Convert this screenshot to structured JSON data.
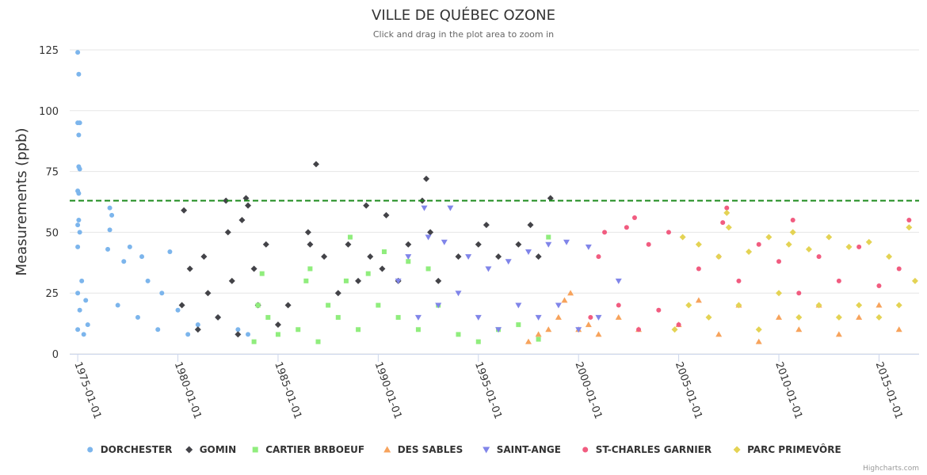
{
  "chart_data": {
    "type": "scatter",
    "title": "VILLE DE QUÉBEC OZONE",
    "subtitle": "Click and drag in the plot area to zoom in",
    "ylabel": "Measurements (ppb)",
    "xlabel": "",
    "ylim": [
      0,
      125
    ],
    "xlim": [
      1974.6,
      2017.0
    ],
    "yticks": [
      0,
      25,
      50,
      75,
      100,
      125
    ],
    "ytick_labels": [
      "0",
      "25",
      "50",
      "75",
      "100",
      "125"
    ],
    "xticks": [
      1975,
      1980,
      1985,
      1990,
      1995,
      2000,
      2005,
      2010,
      2015
    ],
    "xtick_labels": [
      "1975-01-01",
      "1980-01-01",
      "1985-01-01",
      "1990-01-01",
      "1995-01-01",
      "2000-01-01",
      "2005-01-01",
      "2010-01-01",
      "2015-01-01"
    ],
    "threshold": 63,
    "threshold_color": "#1b8a1b",
    "grid": true,
    "legend_position": "bottom",
    "credits": "Highcharts.com",
    "series": [
      {
        "name": "DORCHESTER",
        "color": "#7cb5ec",
        "marker": "circle",
        "data": [
          [
            1975.0,
            10
          ],
          [
            1975.0,
            25
          ],
          [
            1975.0,
            124
          ],
          [
            1975.05,
            115
          ],
          [
            1975.0,
            95
          ],
          [
            1975.1,
            95
          ],
          [
            1975.05,
            90
          ],
          [
            1975.05,
            77
          ],
          [
            1975.1,
            76
          ],
          [
            1975.0,
            67
          ],
          [
            1975.05,
            66
          ],
          [
            1975.05,
            55
          ],
          [
            1975.0,
            53
          ],
          [
            1975.1,
            50
          ],
          [
            1975.0,
            44
          ],
          [
            1975.2,
            30
          ],
          [
            1975.1,
            18
          ],
          [
            1975.3,
            8
          ],
          [
            1975.4,
            22
          ],
          [
            1975.5,
            12
          ],
          [
            1976.5,
            43
          ],
          [
            1976.6,
            60
          ],
          [
            1976.7,
            57
          ],
          [
            1976.6,
            51
          ],
          [
            1977.0,
            20
          ],
          [
            1977.3,
            38
          ],
          [
            1977.6,
            44
          ],
          [
            1978.0,
            15
          ],
          [
            1978.2,
            40
          ],
          [
            1978.5,
            30
          ],
          [
            1979.0,
            10
          ],
          [
            1979.2,
            25
          ],
          [
            1979.6,
            42
          ],
          [
            1980.0,
            18
          ],
          [
            1980.5,
            8
          ],
          [
            1981.0,
            12
          ],
          [
            1982.0,
            15
          ],
          [
            1983.0,
            10
          ],
          [
            1983.5,
            8
          ]
        ]
      },
      {
        "name": "GOMIN",
        "color": "#434348",
        "marker": "diamond",
        "data": [
          [
            1980.3,
            59
          ],
          [
            1980.2,
            20
          ],
          [
            1980.6,
            35
          ],
          [
            1981.0,
            10
          ],
          [
            1981.3,
            40
          ],
          [
            1981.5,
            25
          ],
          [
            1982.0,
            15
          ],
          [
            1982.4,
            63
          ],
          [
            1982.5,
            50
          ],
          [
            1982.7,
            30
          ],
          [
            1983.0,
            8
          ],
          [
            1983.2,
            55
          ],
          [
            1983.4,
            64
          ],
          [
            1983.5,
            61
          ],
          [
            1983.8,
            35
          ],
          [
            1984.0,
            20
          ],
          [
            1984.4,
            45
          ],
          [
            1985.0,
            12
          ],
          [
            1985.5,
            20
          ],
          [
            1986.5,
            50
          ],
          [
            1986.6,
            45
          ],
          [
            1986.9,
            78
          ],
          [
            1987.3,
            40
          ],
          [
            1988.0,
            25
          ],
          [
            1988.5,
            45
          ],
          [
            1989.0,
            30
          ],
          [
            1989.4,
            61
          ],
          [
            1989.6,
            40
          ],
          [
            1990.2,
            35
          ],
          [
            1990.4,
            57
          ],
          [
            1991.0,
            30
          ],
          [
            1991.5,
            45
          ],
          [
            1992.4,
            72
          ],
          [
            1992.2,
            63
          ],
          [
            1992.6,
            50
          ],
          [
            1993.0,
            30
          ],
          [
            1994.0,
            40
          ],
          [
            1995.0,
            45
          ],
          [
            1995.4,
            53
          ],
          [
            1996.0,
            40
          ],
          [
            1997.0,
            45
          ],
          [
            1997.6,
            53
          ],
          [
            1998.0,
            40
          ],
          [
            1998.6,
            64
          ]
        ]
      },
      {
        "name": "CARTIER BRBOEUF",
        "color": "#90ed7d",
        "marker": "square",
        "data": [
          [
            1983.8,
            5
          ],
          [
            1984.0,
            20
          ],
          [
            1984.2,
            33
          ],
          [
            1984.5,
            15
          ],
          [
            1985.0,
            8
          ],
          [
            1986.0,
            10
          ],
          [
            1986.4,
            30
          ],
          [
            1986.6,
            35
          ],
          [
            1987.0,
            5
          ],
          [
            1987.5,
            20
          ],
          [
            1988.0,
            15
          ],
          [
            1988.4,
            30
          ],
          [
            1988.6,
            48
          ],
          [
            1989.0,
            10
          ],
          [
            1989.5,
            33
          ],
          [
            1990.0,
            20
          ],
          [
            1990.3,
            42
          ],
          [
            1991.0,
            15
          ],
          [
            1991.5,
            38
          ],
          [
            1992.0,
            10
          ],
          [
            1992.5,
            35
          ],
          [
            1993.0,
            20
          ],
          [
            1994.0,
            8
          ],
          [
            1995.0,
            5
          ],
          [
            1996.0,
            10
          ],
          [
            1997.0,
            12
          ],
          [
            1998.0,
            6
          ],
          [
            1998.5,
            48
          ]
        ]
      },
      {
        "name": "DES SABLES",
        "color": "#f7a35c",
        "marker": "triangle",
        "data": [
          [
            1997.5,
            5
          ],
          [
            1998.0,
            8
          ],
          [
            1998.5,
            10
          ],
          [
            1999.0,
            15
          ],
          [
            1999.3,
            22
          ],
          [
            1999.6,
            25
          ],
          [
            2000.0,
            10
          ],
          [
            2000.5,
            12
          ],
          [
            2001.0,
            8
          ],
          [
            2002.0,
            15
          ],
          [
            2003.0,
            10
          ],
          [
            2005.0,
            12
          ],
          [
            2006.0,
            22
          ],
          [
            2007.0,
            8
          ],
          [
            2008.0,
            20
          ],
          [
            2009.0,
            5
          ],
          [
            2010.0,
            15
          ],
          [
            2011.0,
            10
          ],
          [
            2012.0,
            20
          ],
          [
            2013.0,
            8
          ],
          [
            2014.0,
            15
          ],
          [
            2015.0,
            20
          ],
          [
            2016.0,
            10
          ]
        ]
      },
      {
        "name": "SAINT-ANGE",
        "color": "#8085e9",
        "marker": "triangle-down",
        "data": [
          [
            1991.0,
            30
          ],
          [
            1991.5,
            40
          ],
          [
            1992.0,
            15
          ],
          [
            1992.3,
            60
          ],
          [
            1992.5,
            48
          ],
          [
            1993.0,
            20
          ],
          [
            1993.3,
            46
          ],
          [
            1993.6,
            60
          ],
          [
            1994.0,
            25
          ],
          [
            1994.5,
            40
          ],
          [
            1995.0,
            15
          ],
          [
            1995.5,
            35
          ],
          [
            1996.0,
            10
          ],
          [
            1996.5,
            38
          ],
          [
            1997.0,
            20
          ],
          [
            1997.5,
            42
          ],
          [
            1998.0,
            15
          ],
          [
            1998.5,
            45
          ],
          [
            1999.0,
            20
          ],
          [
            1999.4,
            46
          ],
          [
            2000.0,
            10
          ],
          [
            2000.5,
            44
          ],
          [
            2001.0,
            15
          ],
          [
            2002.0,
            30
          ]
        ]
      },
      {
        "name": "ST-CHARLES GARNIER",
        "color": "#f15c80",
        "marker": "circle",
        "data": [
          [
            2000.6,
            15
          ],
          [
            2001.0,
            40
          ],
          [
            2001.3,
            50
          ],
          [
            2002.0,
            20
          ],
          [
            2002.4,
            52
          ],
          [
            2002.8,
            56
          ],
          [
            2003.0,
            10
          ],
          [
            2003.5,
            45
          ],
          [
            2004.0,
            18
          ],
          [
            2004.5,
            50
          ],
          [
            2005.0,
            12
          ],
          [
            2006.0,
            35
          ],
          [
            2007.0,
            40
          ],
          [
            2007.4,
            60
          ],
          [
            2007.2,
            54
          ],
          [
            2008.0,
            30
          ],
          [
            2009.0,
            45
          ],
          [
            2010.0,
            38
          ],
          [
            2010.7,
            55
          ],
          [
            2011.0,
            25
          ],
          [
            2012.0,
            40
          ],
          [
            2013.0,
            30
          ],
          [
            2014.0,
            44
          ],
          [
            2015.0,
            28
          ],
          [
            2016.0,
            35
          ],
          [
            2016.5,
            55
          ]
        ]
      },
      {
        "name": "PARC PRIMEVÔRE",
        "color": "#e4d354",
        "marker": "diamond",
        "data": [
          [
            2004.8,
            10
          ],
          [
            2005.2,
            48
          ],
          [
            2005.5,
            20
          ],
          [
            2006.0,
            45
          ],
          [
            2006.5,
            15
          ],
          [
            2007.0,
            40
          ],
          [
            2007.4,
            58
          ],
          [
            2007.5,
            52
          ],
          [
            2008.0,
            20
          ],
          [
            2008.5,
            42
          ],
          [
            2009.0,
            10
          ],
          [
            2009.5,
            48
          ],
          [
            2010.0,
            25
          ],
          [
            2010.5,
            45
          ],
          [
            2010.7,
            50
          ],
          [
            2011.0,
            15
          ],
          [
            2011.5,
            43
          ],
          [
            2012.0,
            20
          ],
          [
            2012.5,
            48
          ],
          [
            2013.0,
            15
          ],
          [
            2013.5,
            44
          ],
          [
            2014.0,
            20
          ],
          [
            2014.5,
            46
          ],
          [
            2015.0,
            15
          ],
          [
            2015.5,
            40
          ],
          [
            2016.0,
            20
          ],
          [
            2016.5,
            52
          ],
          [
            2016.8,
            30
          ]
        ]
      }
    ]
  }
}
